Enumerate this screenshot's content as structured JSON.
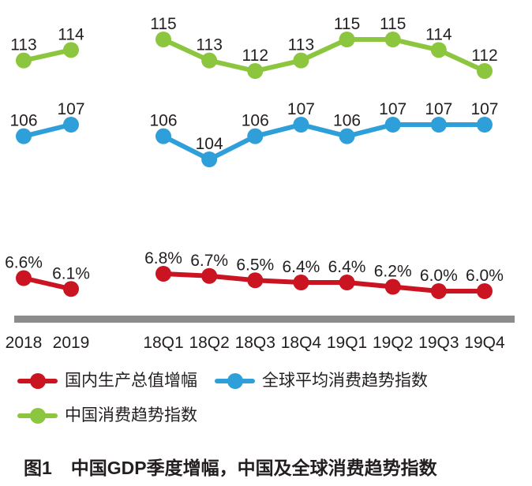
{
  "figure": {
    "caption_prefix": "图1",
    "caption": "中国GDP季度增幅，中国及全球消费趋势指数"
  },
  "chart_data": {
    "type": "line",
    "title": "图1 中国GDP季度增幅，中国及全球消费趋势指数",
    "x_groups": [
      {
        "name": "annual",
        "categories": [
          "2018",
          "2019"
        ]
      },
      {
        "name": "quarterly",
        "categories": [
          "18Q1",
          "18Q2",
          "18Q3",
          "18Q4",
          "19Q1",
          "19Q2",
          "19Q3",
          "19Q4"
        ]
      }
    ],
    "series": [
      {
        "name": "国内生产总值增幅",
        "color": "#CB1422",
        "format": "percent",
        "annual": [
          6.6,
          6.1
        ],
        "quarterly": [
          6.8,
          6.7,
          6.5,
          6.4,
          6.4,
          6.2,
          6.0,
          6.0
        ]
      },
      {
        "name": "全球平均消费趋势指数",
        "color": "#2E9FD9",
        "format": "integer",
        "annual": [
          106,
          107
        ],
        "quarterly": [
          106,
          104,
          106,
          107,
          106,
          107,
          107,
          107
        ]
      },
      {
        "name": "中国消费趋势指数",
        "color": "#8CC63F",
        "format": "integer",
        "annual": [
          113,
          114
        ],
        "quarterly": [
          115,
          113,
          112,
          113,
          115,
          115,
          114,
          112
        ]
      }
    ],
    "axis": {
      "baseline_color": "#8C8C8C",
      "label_color": "#231F20"
    },
    "legend_position": "bottom",
    "grid": false
  }
}
